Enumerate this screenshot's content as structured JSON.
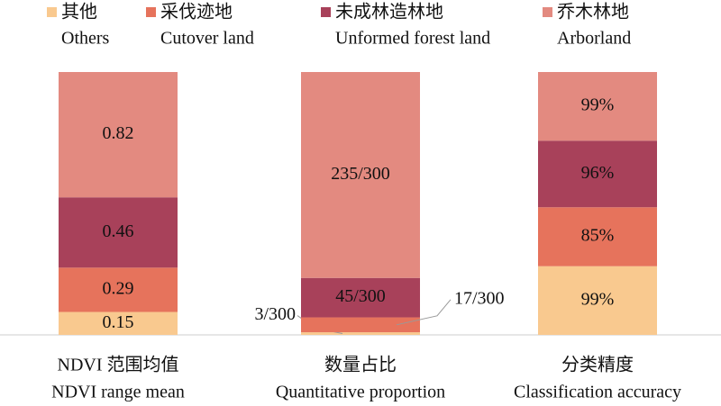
{
  "chart_data": {
    "type": "bar",
    "stacked": true,
    "normalized": true,
    "categories": [
      "NDVI 范围均值",
      "数量占比",
      "分类精度"
    ],
    "categories_en": [
      "NDVI range mean",
      "Quantitative proportion",
      "Classification accuracy"
    ],
    "series": [
      {
        "name": "其他",
        "name_en": "Others",
        "color": "#f9c98f",
        "values": [
          0.15,
          3,
          99
        ],
        "value_labels": [
          "0.15",
          "3/300",
          "99%"
        ]
      },
      {
        "name": "采伐迹地",
        "name_en": "Cutover land",
        "color": "#e6735c",
        "values": [
          0.29,
          17,
          85
        ],
        "value_labels": [
          "0.29",
          "17/300",
          "85%"
        ]
      },
      {
        "name": "未成林造林地",
        "name_en": "Unformed forest land",
        "color": "#a8415a",
        "values": [
          0.46,
          45,
          96
        ],
        "value_labels": [
          "0.46",
          "45/300",
          "96%"
        ]
      },
      {
        "name": "乔木林地",
        "name_en": "Arborland",
        "color": "#e38a80",
        "values": [
          0.82,
          235,
          99
        ],
        "value_labels": [
          "0.82",
          "235/300",
          "99%"
        ]
      }
    ]
  }
}
